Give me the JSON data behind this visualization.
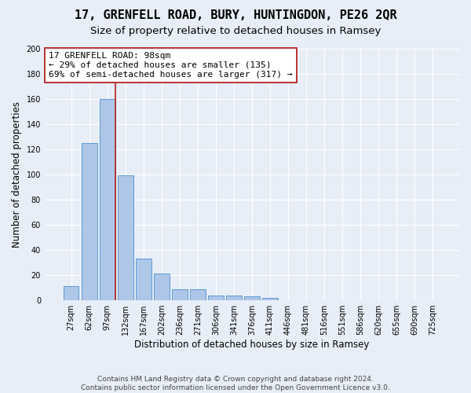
{
  "title": "17, GRENFELL ROAD, BURY, HUNTINGDON, PE26 2QR",
  "subtitle": "Size of property relative to detached houses in Ramsey",
  "xlabel": "Distribution of detached houses by size in Ramsey",
  "ylabel": "Number of detached properties",
  "categories": [
    "27sqm",
    "62sqm",
    "97sqm",
    "132sqm",
    "167sqm",
    "202sqm",
    "236sqm",
    "271sqm",
    "306sqm",
    "341sqm",
    "376sqm",
    "411sqm",
    "446sqm",
    "481sqm",
    "516sqm",
    "551sqm",
    "586sqm",
    "620sqm",
    "655sqm",
    "690sqm",
    "725sqm"
  ],
  "values": [
    11,
    125,
    160,
    99,
    33,
    21,
    9,
    9,
    4,
    4,
    3,
    2,
    0,
    0,
    0,
    0,
    0,
    0,
    0,
    0,
    0
  ],
  "bar_color": "#aec6e8",
  "bar_edge_color": "#5b9bd5",
  "background_color": "#e8eef7",
  "vline_index": 2.43,
  "vline_color": "#b22222",
  "annotation_line1": "17 GRENFELL ROAD: 98sqm",
  "annotation_line2": "← 29% of detached houses are smaller (135)",
  "annotation_line3": "69% of semi-detached houses are larger (317) →",
  "annotation_box_color": "white",
  "annotation_box_edge_color": "#b22222",
  "ylim": [
    0,
    200
  ],
  "yticks": [
    0,
    20,
    40,
    60,
    80,
    100,
    120,
    140,
    160,
    180,
    200
  ],
  "footer": "Contains HM Land Registry data © Crown copyright and database right 2024.\nContains public sector information licensed under the Open Government Licence v3.0.",
  "title_fontsize": 11,
  "subtitle_fontsize": 9.5,
  "xlabel_fontsize": 8.5,
  "ylabel_fontsize": 8.5,
  "tick_fontsize": 7,
  "annotation_fontsize": 8,
  "footer_fontsize": 6.5
}
